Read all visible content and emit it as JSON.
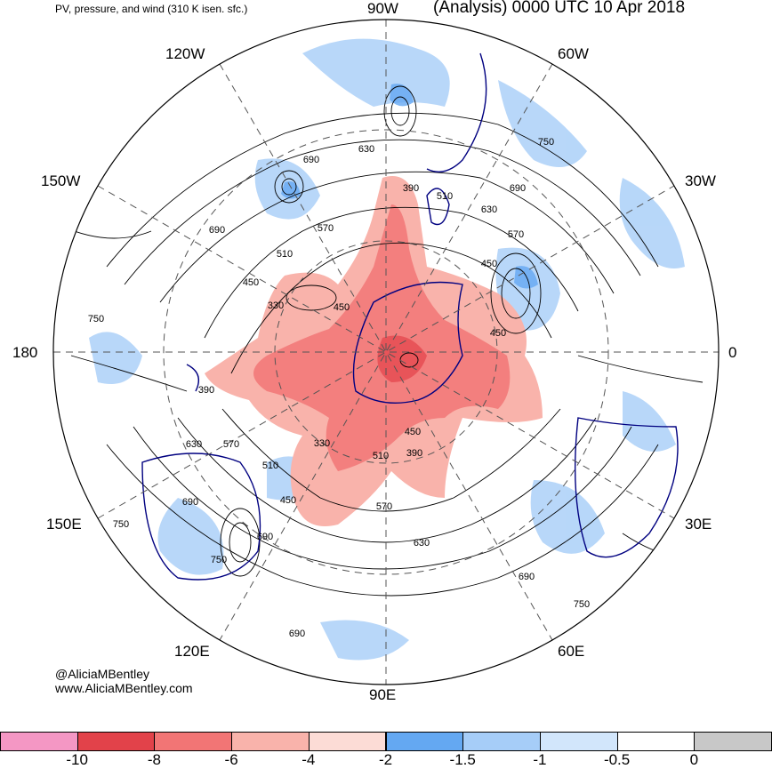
{
  "header": {
    "subtitle": "PV, pressure, and wind (310 K isen. sfc.)",
    "title": "(Analysis) 0000 UTC 10 Apr 2018"
  },
  "longitude_labels": {
    "w90": "90W",
    "w120": "120W",
    "w60": "60W",
    "w150": "150W",
    "w30": "30W",
    "lon180": "180",
    "lon0": "0",
    "e150": "150E",
    "e30": "30E",
    "e120": "120E",
    "e60": "60E",
    "e90": "90E"
  },
  "contour_labels": [
    {
      "id": "c1",
      "text": "690"
    },
    {
      "id": "c2",
      "text": "630"
    },
    {
      "id": "c3",
      "text": "750"
    },
    {
      "id": "c4",
      "text": "390"
    },
    {
      "id": "c5",
      "text": "510"
    },
    {
      "id": "c6",
      "text": "690"
    },
    {
      "id": "c7",
      "text": "630"
    },
    {
      "id": "c8",
      "text": "570"
    },
    {
      "id": "c9",
      "text": "570"
    },
    {
      "id": "c10",
      "text": "690"
    },
    {
      "id": "c11",
      "text": "510"
    },
    {
      "id": "c12",
      "text": "450"
    },
    {
      "id": "c13",
      "text": "450"
    },
    {
      "id": "c14",
      "text": "330"
    },
    {
      "id": "c15",
      "text": "450"
    },
    {
      "id": "c16",
      "text": "750"
    },
    {
      "id": "c17",
      "text": "450"
    },
    {
      "id": "c18",
      "text": "390"
    },
    {
      "id": "c19",
      "text": "450"
    },
    {
      "id": "c20",
      "text": "630"
    },
    {
      "id": "c21",
      "text": "570"
    },
    {
      "id": "c22",
      "text": "330"
    },
    {
      "id": "c23",
      "text": "510"
    },
    {
      "id": "c24",
      "text": "390"
    },
    {
      "id": "c25",
      "text": "510"
    },
    {
      "id": "c26",
      "text": "450"
    },
    {
      "id": "c27",
      "text": "690"
    },
    {
      "id": "c28",
      "text": "570"
    },
    {
      "id": "c29",
      "text": "630"
    },
    {
      "id": "c30",
      "text": "750"
    },
    {
      "id": "c31",
      "text": "690"
    },
    {
      "id": "c32",
      "text": "750"
    },
    {
      "id": "c33",
      "text": "690"
    },
    {
      "id": "c34",
      "text": "690"
    }
  ],
  "credit": {
    "handle": "@AliciaMBentley",
    "website": "www.AliciaMBentley.com"
  },
  "colorbar": {
    "labels": [
      "-10",
      "-8",
      "-6",
      "-4",
      "-2",
      "-1.5",
      "-1",
      "-0.5",
      "0"
    ],
    "colors": [
      "#f497c4",
      "#e2424a",
      "#f27575",
      "#f9b3ab",
      "#fcdcd6",
      "#64a8f2",
      "#a6cdf8",
      "#d2e6fb",
      "#ffffff",
      "#c8c8c8"
    ]
  },
  "colors": {
    "pv_negative_strong": "#f27575",
    "pv_negative_light": "#f9b3ab",
    "pv_positive_light": "#a6cdf8",
    "pv_positive_medium": "#64a8f2",
    "coastline": "#000080"
  }
}
